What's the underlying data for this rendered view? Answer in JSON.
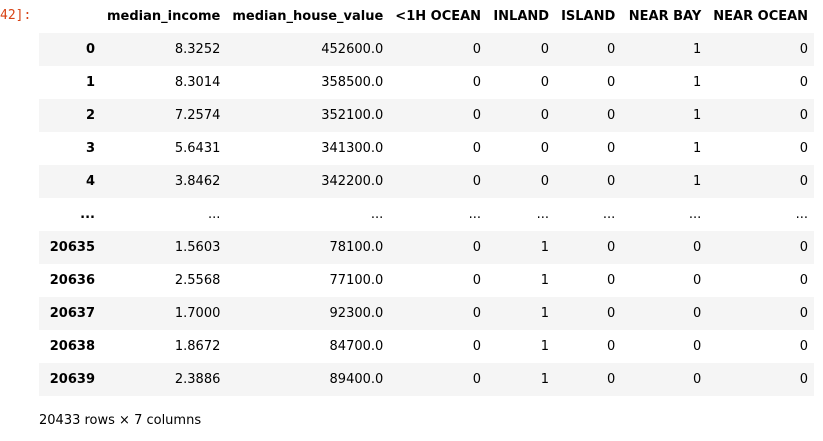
{
  "cell_prompt": "42]:",
  "table": {
    "columns": [
      "",
      "median_income",
      "median_house_value",
      "<1H OCEAN",
      "INLAND",
      "ISLAND",
      "NEAR BAY",
      "NEAR OCEAN"
    ],
    "rows": [
      [
        "0",
        "8.3252",
        "452600.0",
        "0",
        "0",
        "0",
        "1",
        "0"
      ],
      [
        "1",
        "8.3014",
        "358500.0",
        "0",
        "0",
        "0",
        "1",
        "0"
      ],
      [
        "2",
        "7.2574",
        "352100.0",
        "0",
        "0",
        "0",
        "1",
        "0"
      ],
      [
        "3",
        "5.6431",
        "341300.0",
        "0",
        "0",
        "0",
        "1",
        "0"
      ],
      [
        "4",
        "3.8462",
        "342200.0",
        "0",
        "0",
        "0",
        "1",
        "0"
      ],
      [
        "...",
        "...",
        "...",
        "...",
        "...",
        "...",
        "...",
        "..."
      ],
      [
        "20635",
        "1.5603",
        "78100.0",
        "0",
        "1",
        "0",
        "0",
        "0"
      ],
      [
        "20636",
        "2.5568",
        "77100.0",
        "0",
        "1",
        "0",
        "0",
        "0"
      ],
      [
        "20637",
        "1.7000",
        "92300.0",
        "0",
        "1",
        "0",
        "0",
        "0"
      ],
      [
        "20638",
        "1.8672",
        "84700.0",
        "0",
        "1",
        "0",
        "0",
        "0"
      ],
      [
        "20639",
        "2.3886",
        "89400.0",
        "0",
        "1",
        "0",
        "0",
        "0"
      ]
    ]
  },
  "shape_text": "20433 rows × 7 columns"
}
